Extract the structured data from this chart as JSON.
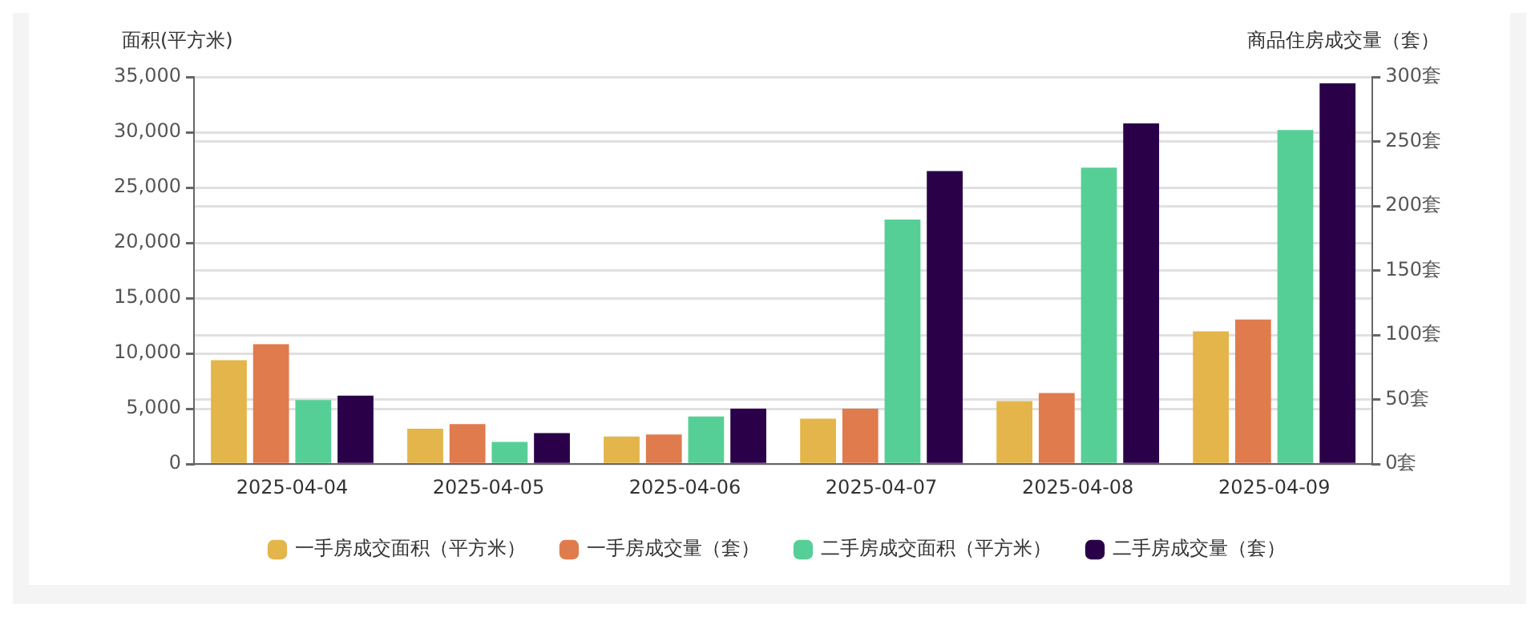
{
  "chart_data": {
    "type": "bar",
    "ylabel": "面积(平方米)",
    "y2label": "商品住房成交量（套）",
    "categories": [
      "2025-04-04",
      "2025-04-05",
      "2025-04-06",
      "2025-04-07",
      "2025-04-08",
      "2025-04-09"
    ],
    "series": [
      {
        "name": "一手房成交面积（平方米）",
        "color": "#e4b54a",
        "values": [
          9400,
          3200,
          2500,
          4100,
          5700,
          12000
        ]
      },
      {
        "name": "一手房成交量（套）",
        "color": "#e07b4e",
        "axis": "y2",
        "values": [
          93,
          31,
          23,
          43,
          55,
          112
        ]
      },
      {
        "name": "二手房成交面积（平方米）",
        "color": "#56cf96",
        "values": [
          5800,
          2000,
          4300,
          22100,
          26800,
          30200
        ]
      },
      {
        "name": "二手房成交量（套）",
        "color": "#2a0049",
        "axis": "y2",
        "values": [
          53,
          24,
          43,
          227,
          264,
          295
        ]
      }
    ],
    "ylim": [
      0,
      35000
    ],
    "yticks": [
      0,
      {
        "value": 5000,
        "label": "5,000"
      },
      {
        "value": 10000,
        "label": "10,000"
      },
      {
        "value": 15000,
        "label": "15,000"
      },
      {
        "value": 20000,
        "label": "20,000"
      },
      {
        "value": 25000,
        "label": "25,000"
      },
      {
        "value": 30000,
        "label": "30,000"
      },
      {
        "value": 35000,
        "label": "35,000"
      }
    ],
    "y2lim": [
      0,
      300
    ],
    "y2ticks": [
      {
        "value": 0,
        "label": "0套"
      },
      {
        "value": 50,
        "label": "50套"
      },
      {
        "value": 100,
        "label": "100套"
      },
      {
        "value": 150,
        "label": "150套"
      },
      {
        "value": 200,
        "label": "200套"
      },
      {
        "value": 250,
        "label": "250套"
      },
      {
        "value": 300,
        "label": "300套"
      }
    ],
    "grid": "y",
    "legend": "bottom"
  }
}
